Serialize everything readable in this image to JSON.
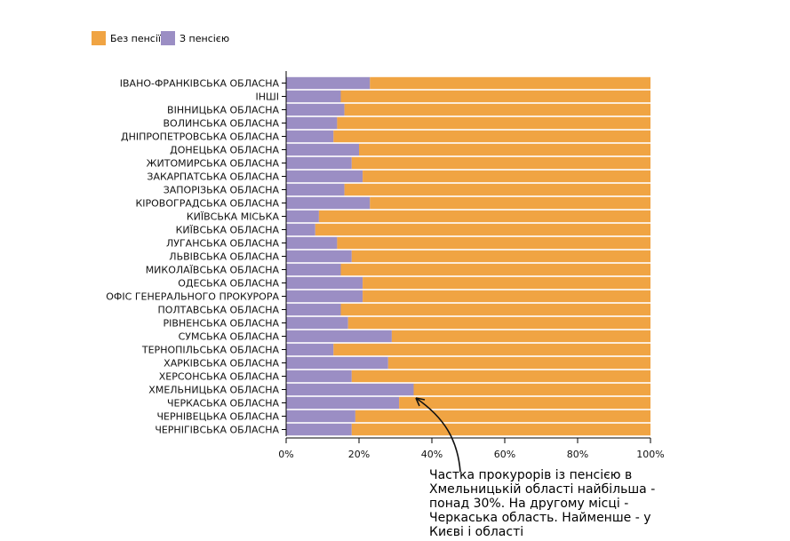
{
  "legend": {
    "items": [
      {
        "label": "Без пенсії",
        "color": "#f0a443"
      },
      {
        "label": "З пенсією",
        "color": "#9b8ec4"
      }
    ]
  },
  "annotation": {
    "text": "Частка прокурорів із пенсією в Хмельницькій області найбільша - понад 30%. На другому місці - Черкаська область. Найменше - у Києві і області"
  },
  "chart_data": {
    "type": "bar",
    "orientation": "horizontal",
    "stacked": true,
    "normalized": true,
    "categories": [
      "ІВАНО-ФРАНКІВСЬКА ОБЛАСНА",
      "ІНШІ",
      "ВІННИЦЬКА ОБЛАСНА",
      "ВОЛИНСЬКА ОБЛАСНА",
      "ДНІПРОПЕТРОВСЬКА ОБЛАСНА",
      "ДОНЕЦЬКА ОБЛАСНА",
      "ЖИТОМИРСЬКА ОБЛАСНА",
      "ЗАКАРПАТСЬКА ОБЛАСНА",
      "ЗАПОРІЗЬКА ОБЛАСНА",
      "КІРОВОГРАДСЬКА ОБЛАСНА",
      "КИЇВСЬКА МІСЬКА",
      "КИЇВСЬКА ОБЛАСНА",
      "ЛУГАНСЬКА ОБЛАСНА",
      "ЛЬВІВСЬКА ОБЛАСНА",
      "МИКОЛАЇВСЬКА ОБЛАСНА",
      "ОДЕСЬКА ОБЛАСНА",
      "ОФІС ГЕНЕРАЛЬНОГО ПРОКУРОРА",
      "ПОЛТАВСЬКА ОБЛАСНА",
      "РІВНЕНСЬКА ОБЛАСНА",
      "СУМСЬКА ОБЛАСНА",
      "ТЕРНОПІЛЬСЬКА ОБЛАСНА",
      "ХАРКІВСЬКА ОБЛАСНА",
      "ХЕРСОНСЬКА ОБЛАСНА",
      "ХМЕЛЬНИЦЬКА ОБЛАСНА",
      "ЧЕРКАСЬКА ОБЛАСНА",
      "ЧЕРНІВЕЦЬКА ОБЛАСНА",
      "ЧЕРНІГІВСЬКА ОБЛАСНА"
    ],
    "series": [
      {
        "name": "З пенсією",
        "color": "#9b8ec4",
        "values": [
          23,
          15,
          16,
          14,
          13,
          20,
          18,
          21,
          16,
          23,
          9,
          8,
          14,
          18,
          15,
          21,
          21,
          15,
          17,
          29,
          13,
          28,
          18,
          35,
          31,
          19,
          18
        ]
      },
      {
        "name": "Без пенсії",
        "color": "#f0a443",
        "values": [
          77,
          85,
          84,
          86,
          87,
          80,
          82,
          79,
          84,
          77,
          91,
          92,
          86,
          82,
          85,
          79,
          79,
          85,
          83,
          71,
          87,
          72,
          82,
          65,
          69,
          81,
          82
        ]
      }
    ],
    "x_ticks": [
      "0%",
      "20%",
      "40%",
      "60%",
      "80%",
      "100%"
    ],
    "xlim": [
      0,
      100
    ],
    "legend_position": "top-left",
    "grid": false
  }
}
